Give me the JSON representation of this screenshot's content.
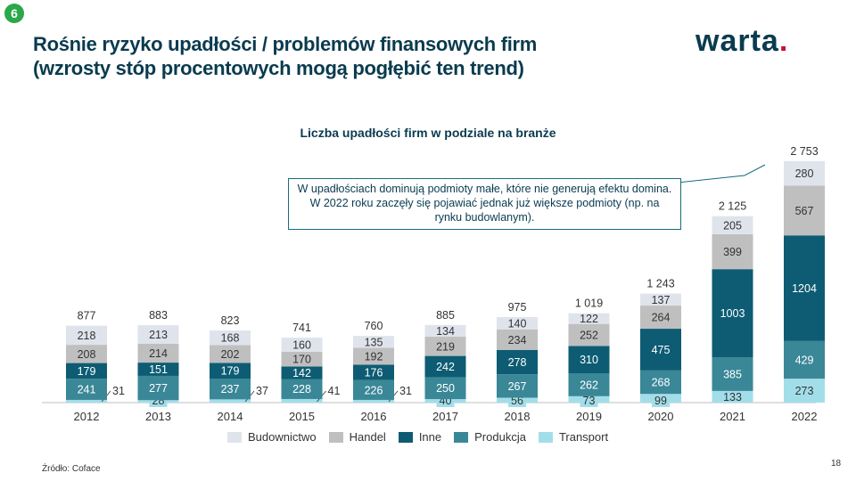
{
  "page": {
    "badge": "6",
    "title_line1": "Rośnie ryzyko upadłości / problemów finansowych firm",
    "title_line2": "(wzrosty stóp procentowych mogą pogłębić ten trend)",
    "logo_text": "warta",
    "logo_dot": ".",
    "source": "Źródło: Coface",
    "page_number": "18",
    "callout": "W upadłościach  dominują podmioty małe, które nie generują efektu domina. W 2022 roku zaczęły się pojawiać jednak już większe podmioty (np. na rynku budowlanym)."
  },
  "colors": {
    "Budownictwo": "#dfe4ec",
    "Handel": "#bfbfbf",
    "Inne": "#0d5c73",
    "Produkcja": "#3a8797",
    "Transport": "#a2deea",
    "brand": "#0a3b4f",
    "accent": "#c8102e",
    "badge": "#2aa84a"
  },
  "chart_data": {
    "type": "bar",
    "stacked": true,
    "title": "Liczba upadłości firm w podziale na branże",
    "categories": [
      "2012",
      "2013",
      "2014",
      "2015",
      "2016",
      "2017",
      "2018",
      "2019",
      "2020",
      "2021",
      "2022"
    ],
    "series": [
      {
        "name": "Transport",
        "values": [
          31,
          28,
          37,
          41,
          31,
          40,
          56,
          73,
          99,
          133,
          273
        ]
      },
      {
        "name": "Produkcja",
        "values": [
          241,
          277,
          237,
          228,
          226,
          250,
          267,
          262,
          268,
          385,
          429
        ]
      },
      {
        "name": "Inne",
        "values": [
          179,
          151,
          179,
          142,
          176,
          242,
          278,
          310,
          475,
          1003,
          1204
        ]
      },
      {
        "name": "Handel",
        "values": [
          208,
          214,
          202,
          170,
          192,
          219,
          234,
          252,
          264,
          399,
          567
        ]
      },
      {
        "name": "Budownictwo",
        "values": [
          218,
          213,
          168,
          160,
          135,
          134,
          140,
          122,
          137,
          205,
          280
        ]
      }
    ],
    "totals": [
      "877",
      "883",
      "823",
      "741",
      "760",
      "885",
      "975",
      "1 019",
      "1 243",
      "2 125",
      "2 753"
    ],
    "legend_order": [
      "Budownictwo",
      "Handel",
      "Inne",
      "Produkcja",
      "Transport"
    ],
    "legend_position": "bottom",
    "grid": false
  }
}
